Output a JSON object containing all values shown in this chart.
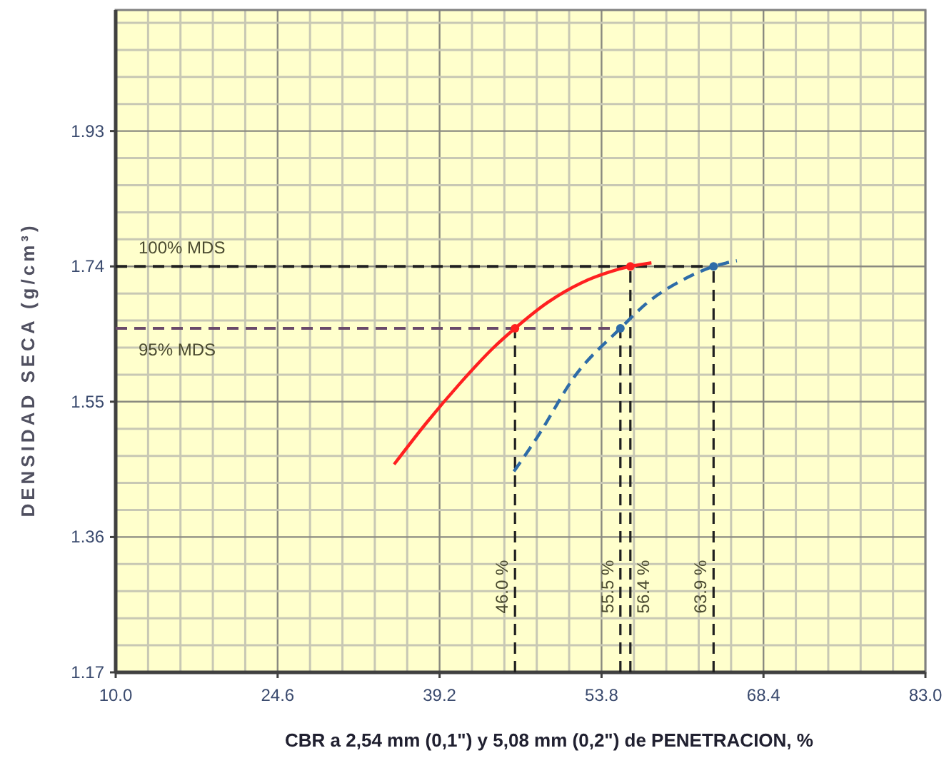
{
  "chart_data": {
    "type": "line",
    "xlabel": "CBR a 2,54 mm (0,1\") y 5,08 mm (0,2\") de PENETRACION, %",
    "ylabel": "DENSIDAD SECA (g/cm³)",
    "xlim": [
      10.0,
      83.0
    ],
    "ylim": [
      1.17,
      2.1
    ],
    "xticks": [
      {
        "value": 10.0,
        "label": "10.0"
      },
      {
        "value": 12.92,
        "label": null
      },
      {
        "value": 15.84,
        "label": null
      },
      {
        "value": 18.76,
        "label": null
      },
      {
        "value": 21.68,
        "label": null
      },
      24.6,
      {
        "value": 27.52,
        "label": null
      },
      {
        "value": 30.44,
        "label": null
      },
      {
        "value": 33.36,
        "label": null
      },
      {
        "value": 36.28,
        "label": null
      },
      39.2,
      {
        "value": 42.12,
        "label": null
      },
      {
        "value": 45.04,
        "label": null
      },
      {
        "value": 47.96,
        "label": null
      },
      {
        "value": 50.88,
        "label": null
      },
      53.8,
      {
        "value": 56.72,
        "label": null
      },
      {
        "value": 59.64,
        "label": null
      },
      {
        "value": 62.56,
        "label": null
      },
      {
        "value": 65.48,
        "label": null
      },
      68.4,
      {
        "value": 71.32,
        "label": null
      },
      {
        "value": 74.24,
        "label": null
      },
      {
        "value": 77.16,
        "label": null
      },
      {
        "value": 80.08,
        "label": null
      },
      {
        "value": 83.0,
        "label": "83.0"
      }
    ],
    "yticks": [
      1.17,
      {
        "value": 1.208,
        "label": null
      },
      {
        "value": 1.246,
        "label": null
      },
      {
        "value": 1.284,
        "label": null
      },
      {
        "value": 1.322,
        "label": null
      },
      1.36,
      {
        "value": 1.398,
        "label": null
      },
      {
        "value": 1.436,
        "label": null
      },
      {
        "value": 1.474,
        "label": null
      },
      {
        "value": 1.512,
        "label": null
      },
      1.55,
      {
        "value": 1.588,
        "label": null
      },
      {
        "value": 1.626,
        "label": null
      },
      {
        "value": 1.664,
        "label": null
      },
      {
        "value": 1.702,
        "label": null
      },
      1.74,
      {
        "value": 1.778,
        "label": null
      },
      {
        "value": 1.816,
        "label": null
      },
      {
        "value": 1.854,
        "label": null
      },
      {
        "value": 1.892,
        "label": null
      },
      1.93,
      {
        "value": 1.968,
        "label": null
      },
      {
        "value": 2.006,
        "label": null
      },
      {
        "value": 2.044,
        "label": null
      },
      {
        "value": 2.082,
        "label": null
      }
    ],
    "grid": true,
    "series": [
      {
        "color": "#ff2020",
        "line_style": "solid",
        "x": [
          35.1,
          38.0,
          41.0,
          44.0,
          46.0,
          49.0,
          52.0,
          54.5,
          56.4,
          58.3
        ],
        "values": [
          1.462,
          1.52,
          1.575,
          1.625,
          1.653,
          1.69,
          1.717,
          1.732,
          1.74,
          1.745
        ]
      },
      {
        "color": "#2e6ca8",
        "line_style": "dashed",
        "x": [
          45.9,
          48.0,
          51.4,
          55.5,
          58.0,
          61.0,
          63.9,
          66.0
        ],
        "values": [
          1.452,
          1.5,
          1.586,
          1.653,
          1.69,
          1.72,
          1.74,
          1.748
        ]
      },
      {
        "type": "scatter",
        "color": "#ff2020",
        "marker": "circle",
        "x": [
          46.0,
          56.4
        ],
        "values": [
          1.653,
          1.74
        ]
      },
      {
        "type": "scatter",
        "color": "#2e6ca8",
        "marker": "circle",
        "x": [
          55.5,
          63.9
        ],
        "values": [
          1.653,
          1.74
        ]
      }
    ],
    "ref_lines": [
      {
        "axis": "y",
        "value": 1.74,
        "label": "100% MDS",
        "color": "#202020",
        "line_style": "dashed"
      },
      {
        "axis": "y",
        "value": 1.653,
        "label": "95% MDS",
        "color": "#6a4a6a",
        "line_style": "dashed"
      },
      {
        "axis": "x",
        "value": 46.0,
        "label": "46.0 %",
        "color": "#202020",
        "line_style": "dashed"
      },
      {
        "axis": "x",
        "value": 55.5,
        "label": "55.5 %",
        "color": "#202020",
        "line_style": "dashed"
      },
      {
        "axis": "x",
        "value": 56.4,
        "label": "56.4 %",
        "color": "#202020",
        "line_style": "dashed"
      },
      {
        "axis": "x",
        "value": 63.9,
        "label": "63.9 %",
        "color": "#202020",
        "line_style": "dashed"
      }
    ]
  }
}
